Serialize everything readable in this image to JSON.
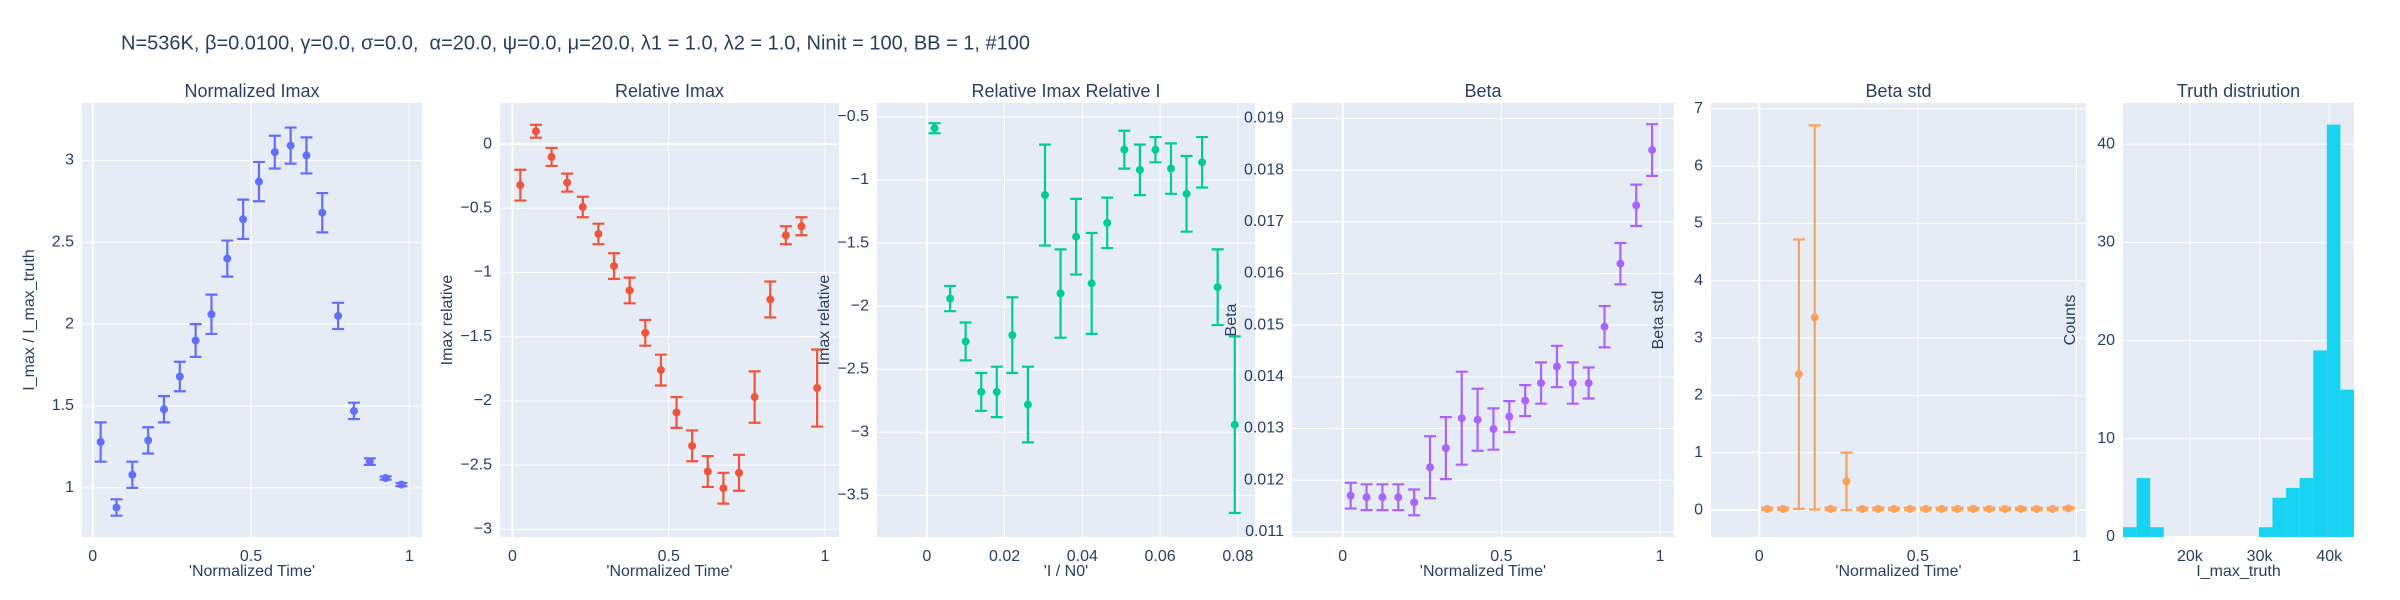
{
  "title": "N=536K, β=0.0100, γ=0.0, σ=0.0,  α=20.0, ψ=0.0, μ=20.0, λ1 = 1.0, λ2 = 1.0, Ninit = 100, BB = 1, #100",
  "chart_data": [
    {
      "type": "scatter",
      "title": "Normalized Imax",
      "x_label": "'Normalized Time'",
      "y_label": "I_max / I_max_truth",
      "color": "#636efa",
      "x": [
        0.025,
        0.075,
        0.125,
        0.175,
        0.225,
        0.275,
        0.325,
        0.375,
        0.425,
        0.475,
        0.525,
        0.575,
        0.625,
        0.675,
        0.725,
        0.775,
        0.825,
        0.875,
        0.925,
        0.975
      ],
      "values": [
        1.28,
        0.88,
        1.08,
        1.29,
        1.48,
        1.68,
        1.9,
        2.06,
        2.4,
        2.64,
        2.87,
        3.05,
        3.09,
        3.03,
        2.68,
        2.05,
        1.47,
        1.16,
        1.06,
        1.02
      ],
      "errors": [
        0.12,
        0.05,
        0.08,
        0.08,
        0.08,
        0.09,
        0.1,
        0.12,
        0.11,
        0.12,
        0.12,
        0.1,
        0.11,
        0.11,
        0.12,
        0.08,
        0.05,
        0.02,
        0.01,
        0.01
      ],
      "xlim": [
        -0.034,
        1.04
      ],
      "ylim": [
        0.7,
        3.35
      ],
      "xticks": [
        0,
        0.5,
        1
      ],
      "yticks": [
        1,
        1.5,
        2,
        2.5,
        3
      ],
      "grid": true
    },
    {
      "type": "scatter",
      "title": "Relative Imax",
      "x_label": "'Normalized Time'",
      "y_label": "Imax relative",
      "color": "#EF553B",
      "x": [
        0.025,
        0.075,
        0.125,
        0.175,
        0.225,
        0.275,
        0.325,
        0.375,
        0.425,
        0.475,
        0.525,
        0.575,
        0.625,
        0.675,
        0.725,
        0.775,
        0.825,
        0.875,
        0.925,
        0.975
      ],
      "values": [
        -0.32,
        0.1,
        -0.1,
        -0.3,
        -0.49,
        -0.7,
        -0.95,
        -1.14,
        -1.47,
        -1.76,
        -2.09,
        -2.35,
        -2.55,
        -2.68,
        -2.56,
        -1.97,
        -1.21,
        -0.71,
        -0.64,
        -1.9
      ],
      "errors": [
        0.12,
        0.05,
        0.07,
        0.07,
        0.08,
        0.08,
        0.1,
        0.1,
        0.1,
        0.12,
        0.12,
        0.12,
        0.12,
        0.12,
        0.14,
        0.2,
        0.14,
        0.07,
        0.07,
        0.3
      ],
      "xlim": [
        -0.04,
        1.045
      ],
      "ylim": [
        -3.06,
        0.32
      ],
      "xticks": [
        0,
        0.5,
        1
      ],
      "yticks": [
        {
          "value": -3,
          "label": "−3"
        },
        {
          "value": -2.5,
          "label": "−2.5"
        },
        {
          "value": -2,
          "label": "−2"
        },
        {
          "value": -1.5,
          "label": "−1.5"
        },
        {
          "value": -1,
          "label": "−1"
        },
        {
          "value": -0.5,
          "label": "−0.5"
        },
        0
      ],
      "grid": true
    },
    {
      "type": "scatter",
      "title": "Relative Imax Relative I",
      "x_label": "'I / N0'",
      "y_label": "Imax relative",
      "color": "#00cc96",
      "x": [
        0.002,
        0.006,
        0.01,
        0.014,
        0.018,
        0.022,
        0.026,
        0.0304,
        0.0344,
        0.0384,
        0.0424,
        0.0464,
        0.0508,
        0.0548,
        0.0588,
        0.0628,
        0.0668,
        0.0708,
        0.0748,
        0.0792
      ],
      "values": [
        -0.59,
        -1.94,
        -2.28,
        -2.68,
        -2.68,
        -2.23,
        -2.78,
        -1.12,
        -1.9,
        -1.45,
        -1.82,
        -1.34,
        -0.76,
        -0.92,
        -0.76,
        -0.91,
        -1.11,
        -0.86,
        -1.85,
        -2.94
      ],
      "errors": [
        0.04,
        0.1,
        0.15,
        0.15,
        0.2,
        0.3,
        0.3,
        0.4,
        0.35,
        0.3,
        0.4,
        0.2,
        0.15,
        0.2,
        0.1,
        0.2,
        0.3,
        0.2,
        0.3,
        0.7
      ],
      "xlim": [
        -0.0128,
        0.0844
      ],
      "ylim": [
        -3.83,
        -0.39
      ],
      "xticks": [
        0,
        0.02,
        0.04,
        0.06,
        0.08
      ],
      "yticks": [
        {
          "value": -3.5,
          "label": "−3.5"
        },
        {
          "value": -3,
          "label": "−3"
        },
        {
          "value": -2.5,
          "label": "−2.5"
        },
        {
          "value": -2,
          "label": "−2"
        },
        {
          "value": -1.5,
          "label": "−1.5"
        },
        {
          "value": -1,
          "label": "−1"
        },
        {
          "value": -0.5,
          "label": "−0.5"
        }
      ],
      "grid": true
    },
    {
      "type": "scatter",
      "title": "Beta",
      "x_label": "'Normalized Time'",
      "y_label": "Beta",
      "color": "#ab63fa",
      "x": [
        0.025,
        0.075,
        0.125,
        0.175,
        0.225,
        0.275,
        0.325,
        0.375,
        0.425,
        0.475,
        0.525,
        0.575,
        0.625,
        0.675,
        0.725,
        0.775,
        0.825,
        0.875,
        0.925,
        0.975
      ],
      "values": [
        0.0117,
        0.01167,
        0.01167,
        0.01167,
        0.01157,
        0.01225,
        0.01262,
        0.0132,
        0.01317,
        0.01299,
        0.01323,
        0.01354,
        0.01388,
        0.0142,
        0.01388,
        0.01388,
        0.01497,
        0.01619,
        0.01732,
        0.01839
      ],
      "errors": [
        0.00025,
        0.00025,
        0.00025,
        0.00025,
        0.00025,
        0.0006,
        0.0006,
        0.0009,
        0.0006,
        0.0004,
        0.0003,
        0.0003,
        0.0004,
        0.0004,
        0.0004,
        0.0003,
        0.0004,
        0.0004,
        0.0004,
        0.0005
      ],
      "xlim": [
        -0.16,
        1.044
      ],
      "ylim": [
        0.0109,
        0.0193
      ],
      "xticks": [
        0,
        0.5,
        1
      ],
      "yticks": [
        0.011,
        0.012,
        0.013,
        0.014,
        0.015,
        0.016,
        0.017,
        0.018,
        0.019
      ],
      "grid": true
    },
    {
      "type": "scatter",
      "title": "Beta std",
      "x_label": "'Normalized Time'",
      "y_label": "Beta std",
      "color": "#FFA15A",
      "x": [
        0.025,
        0.075,
        0.125,
        0.175,
        0.225,
        0.275,
        0.325,
        0.375,
        0.425,
        0.475,
        0.525,
        0.575,
        0.625,
        0.675,
        0.725,
        0.775,
        0.825,
        0.875,
        0.925,
        0.975
      ],
      "values": [
        0.02,
        0.02,
        2.37,
        3.36,
        0.02,
        0.5,
        0.02,
        0.02,
        0.02,
        0.02,
        0.02,
        0.02,
        0.02,
        0.02,
        0.02,
        0.02,
        0.02,
        0.02,
        0.02,
        0.03
      ],
      "errors": [
        0.02,
        0.02,
        2.35,
        3.35,
        0.02,
        0.5,
        0.02,
        0.02,
        0.02,
        0.02,
        0.02,
        0.02,
        0.02,
        0.02,
        0.02,
        0.02,
        0.02,
        0.02,
        0.02,
        0.02
      ],
      "xlim": [
        -0.152,
        1.03
      ],
      "ylim": [
        -0.47,
        7.1
      ],
      "xticks": [
        0,
        0.5,
        1
      ],
      "yticks": [
        0,
        1,
        2,
        3,
        4,
        5,
        6,
        7
      ],
      "grid": true
    },
    {
      "type": "histogram",
      "title": "Truth distriution",
      "x_label": "I_max_truth",
      "y_label": "Counts",
      "color": "#19d3f3",
      "bins": [
        10400,
        12350,
        14300,
        16250,
        18200,
        20150,
        22100,
        24050,
        26000,
        27950,
        29900,
        31850,
        33800,
        35750,
        37700,
        39650,
        41600,
        43550
      ],
      "values": [
        1,
        6,
        1,
        0,
        0,
        0,
        0,
        0,
        0,
        0,
        1,
        4,
        5,
        6,
        19,
        42,
        15
      ],
      "xlim": [
        10400,
        43550
      ],
      "ylim": [
        0,
        44.2
      ],
      "xticks": [
        {
          "value": 20000,
          "label": "20k"
        },
        {
          "value": 30000,
          "label": "30k"
        },
        {
          "value": 40000,
          "label": "40k"
        }
      ],
      "yticks": [
        0,
        10,
        20,
        30,
        40
      ],
      "grid": true
    }
  ]
}
